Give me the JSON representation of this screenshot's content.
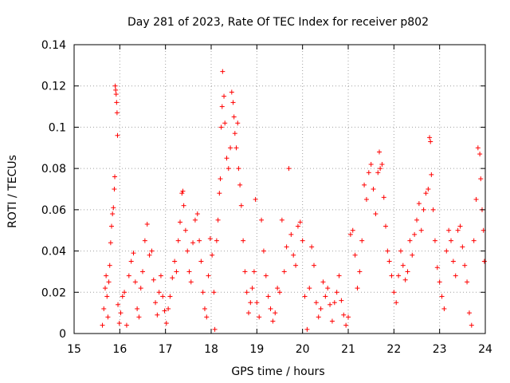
{
  "chart_data": {
    "type": "scatter",
    "title": "Day 281 of 2023, Rate Of TEC Index for receiver p802",
    "xlabel": "GPS time / hours",
    "ylabel": "ROTI / TECUs",
    "xlim": [
      15,
      24
    ],
    "ylim": [
      0,
      0.14
    ],
    "x_ticks": [
      "15",
      "16",
      "17",
      "18",
      "19",
      "20",
      "21",
      "22",
      "23",
      "24"
    ],
    "y_ticks": [
      "0",
      "0.02",
      "0.04",
      "0.06",
      "0.08",
      "0.1",
      "0.12",
      "0.14"
    ],
    "grid": true,
    "marker": "+",
    "marker_color": "#ff0000",
    "series": [
      {
        "name": "ROTI",
        "points": [
          [
            15.62,
            0.004
          ],
          [
            15.65,
            0.012
          ],
          [
            15.68,
            0.022
          ],
          [
            15.7,
            0.028
          ],
          [
            15.72,
            0.018
          ],
          [
            15.74,
            0.008
          ],
          [
            15.76,
            0.025
          ],
          [
            15.78,
            0.033
          ],
          [
            15.8,
            0.044
          ],
          [
            15.82,
            0.052
          ],
          [
            15.84,
            0.058
          ],
          [
            15.86,
            0.061
          ],
          [
            15.88,
            0.07
          ],
          [
            15.89,
            0.076
          ],
          [
            15.9,
            0.12
          ],
          [
            15.91,
            0.118
          ],
          [
            15.92,
            0.116
          ],
          [
            15.93,
            0.112
          ],
          [
            15.94,
            0.107
          ],
          [
            15.95,
            0.096
          ],
          [
            15.96,
            0.014
          ],
          [
            15.99,
            0.005
          ],
          [
            16.02,
            0.01
          ],
          [
            16.06,
            0.018
          ],
          [
            16.1,
            0.02
          ],
          [
            16.15,
            0.004
          ],
          [
            16.2,
            0.028
          ],
          [
            16.25,
            0.035
          ],
          [
            16.3,
            0.039
          ],
          [
            16.34,
            0.025
          ],
          [
            16.38,
            0.012
          ],
          [
            16.42,
            0.008
          ],
          [
            16.46,
            0.022
          ],
          [
            16.5,
            0.03
          ],
          [
            16.55,
            0.045
          ],
          [
            16.6,
            0.053
          ],
          [
            16.65,
            0.038
          ],
          [
            16.7,
            0.04
          ],
          [
            16.74,
            0.026
          ],
          [
            16.78,
            0.015
          ],
          [
            16.82,
            0.009
          ],
          [
            16.86,
            0.02
          ],
          [
            16.9,
            0.028
          ],
          [
            16.94,
            0.018
          ],
          [
            16.98,
            0.011
          ],
          [
            17.02,
            0.005
          ],
          [
            17.06,
            0.012
          ],
          [
            17.1,
            0.018
          ],
          [
            17.15,
            0.027
          ],
          [
            17.2,
            0.035
          ],
          [
            17.24,
            0.03
          ],
          [
            17.28,
            0.045
          ],
          [
            17.32,
            0.054
          ],
          [
            17.36,
            0.068
          ],
          [
            17.38,
            0.069
          ],
          [
            17.4,
            0.062
          ],
          [
            17.44,
            0.05
          ],
          [
            17.48,
            0.04
          ],
          [
            17.52,
            0.03
          ],
          [
            17.56,
            0.025
          ],
          [
            17.6,
            0.044
          ],
          [
            17.65,
            0.055
          ],
          [
            17.7,
            0.058
          ],
          [
            17.74,
            0.045
          ],
          [
            17.78,
            0.035
          ],
          [
            17.82,
            0.02
          ],
          [
            17.86,
            0.012
          ],
          [
            17.9,
            0.008
          ],
          [
            17.94,
            0.028
          ],
          [
            17.98,
            0.046
          ],
          [
            18.02,
            0.038
          ],
          [
            18.06,
            0.02
          ],
          [
            18.08,
            0.002
          ],
          [
            18.12,
            0.045
          ],
          [
            18.15,
            0.055
          ],
          [
            18.18,
            0.068
          ],
          [
            18.2,
            0.075
          ],
          [
            18.22,
            0.1
          ],
          [
            18.24,
            0.11
          ],
          [
            18.25,
            0.127
          ],
          [
            18.28,
            0.115
          ],
          [
            18.3,
            0.102
          ],
          [
            18.34,
            0.085
          ],
          [
            18.38,
            0.08
          ],
          [
            18.42,
            0.09
          ],
          [
            18.45,
            0.117
          ],
          [
            18.48,
            0.112
          ],
          [
            18.5,
            0.105
          ],
          [
            18.52,
            0.097
          ],
          [
            18.55,
            0.09
          ],
          [
            18.58,
            0.102
          ],
          [
            18.6,
            0.08
          ],
          [
            18.63,
            0.072
          ],
          [
            18.66,
            0.062
          ],
          [
            18.7,
            0.045
          ],
          [
            18.74,
            0.03
          ],
          [
            18.78,
            0.02
          ],
          [
            18.82,
            0.01
          ],
          [
            18.86,
            0.015
          ],
          [
            18.9,
            0.022
          ],
          [
            18.94,
            0.03
          ],
          [
            18.97,
            0.065
          ],
          [
            19.0,
            0.015
          ],
          [
            19.05,
            0.008
          ],
          [
            19.1,
            0.055
          ],
          [
            19.15,
            0.04
          ],
          [
            19.2,
            0.028
          ],
          [
            19.25,
            0.018
          ],
          [
            19.3,
            0.012
          ],
          [
            19.35,
            0.006
          ],
          [
            19.4,
            0.01
          ],
          [
            19.45,
            0.022
          ],
          [
            19.5,
            0.02
          ],
          [
            19.55,
            0.055
          ],
          [
            19.6,
            0.03
          ],
          [
            19.65,
            0.042
          ],
          [
            19.7,
            0.08
          ],
          [
            19.75,
            0.048
          ],
          [
            19.8,
            0.038
          ],
          [
            19.85,
            0.033
          ],
          [
            19.9,
            0.052
          ],
          [
            19.95,
            0.054
          ],
          [
            20.0,
            0.045
          ],
          [
            20.05,
            0.018
          ],
          [
            20.1,
            0.002
          ],
          [
            20.15,
            0.022
          ],
          [
            20.2,
            0.042
          ],
          [
            20.25,
            0.033
          ],
          [
            20.3,
            0.015
          ],
          [
            20.35,
            0.008
          ],
          [
            20.4,
            0.012
          ],
          [
            20.45,
            0.025
          ],
          [
            20.5,
            0.018
          ],
          [
            20.55,
            0.022
          ],
          [
            20.6,
            0.014
          ],
          [
            20.65,
            0.006
          ],
          [
            20.7,
            0.015
          ],
          [
            20.75,
            0.02
          ],
          [
            20.8,
            0.028
          ],
          [
            20.85,
            0.016
          ],
          [
            20.9,
            0.009
          ],
          [
            20.95,
            0.004
          ],
          [
            21.0,
            0.008
          ],
          [
            21.05,
            0.048
          ],
          [
            21.1,
            0.05
          ],
          [
            21.15,
            0.038
          ],
          [
            21.2,
            0.022
          ],
          [
            21.25,
            0.03
          ],
          [
            21.3,
            0.045
          ],
          [
            21.35,
            0.072
          ],
          [
            21.4,
            0.065
          ],
          [
            21.45,
            0.078
          ],
          [
            21.5,
            0.082
          ],
          [
            21.55,
            0.07
          ],
          [
            21.6,
            0.058
          ],
          [
            21.65,
            0.078
          ],
          [
            21.68,
            0.088
          ],
          [
            21.7,
            0.08
          ],
          [
            21.74,
            0.082
          ],
          [
            21.78,
            0.066
          ],
          [
            21.82,
            0.052
          ],
          [
            21.86,
            0.04
          ],
          [
            21.9,
            0.035
          ],
          [
            21.95,
            0.028
          ],
          [
            22.0,
            0.02
          ],
          [
            22.05,
            0.015
          ],
          [
            22.1,
            0.028
          ],
          [
            22.15,
            0.04
          ],
          [
            22.2,
            0.033
          ],
          [
            22.25,
            0.026
          ],
          [
            22.3,
            0.03
          ],
          [
            22.35,
            0.045
          ],
          [
            22.4,
            0.038
          ],
          [
            22.45,
            0.048
          ],
          [
            22.5,
            0.055
          ],
          [
            22.55,
            0.063
          ],
          [
            22.6,
            0.05
          ],
          [
            22.65,
            0.06
          ],
          [
            22.7,
            0.068
          ],
          [
            22.75,
            0.07
          ],
          [
            22.78,
            0.095
          ],
          [
            22.8,
            0.093
          ],
          [
            22.82,
            0.077
          ],
          [
            22.86,
            0.06
          ],
          [
            22.9,
            0.045
          ],
          [
            22.95,
            0.032
          ],
          [
            23.0,
            0.025
          ],
          [
            23.05,
            0.018
          ],
          [
            23.1,
            0.012
          ],
          [
            23.15,
            0.04
          ],
          [
            23.2,
            0.05
          ],
          [
            23.25,
            0.045
          ],
          [
            23.3,
            0.035
          ],
          [
            23.35,
            0.028
          ],
          [
            23.4,
            0.05
          ],
          [
            23.45,
            0.052
          ],
          [
            23.5,
            0.042
          ],
          [
            23.55,
            0.033
          ],
          [
            23.6,
            0.025
          ],
          [
            23.65,
            0.01
          ],
          [
            23.7,
            0.004
          ],
          [
            23.75,
            0.045
          ],
          [
            23.8,
            0.065
          ],
          [
            23.84,
            0.09
          ],
          [
            23.88,
            0.087
          ],
          [
            23.9,
            0.075
          ],
          [
            23.93,
            0.06
          ],
          [
            23.96,
            0.05
          ],
          [
            23.98,
            0.035
          ]
        ]
      }
    ]
  }
}
